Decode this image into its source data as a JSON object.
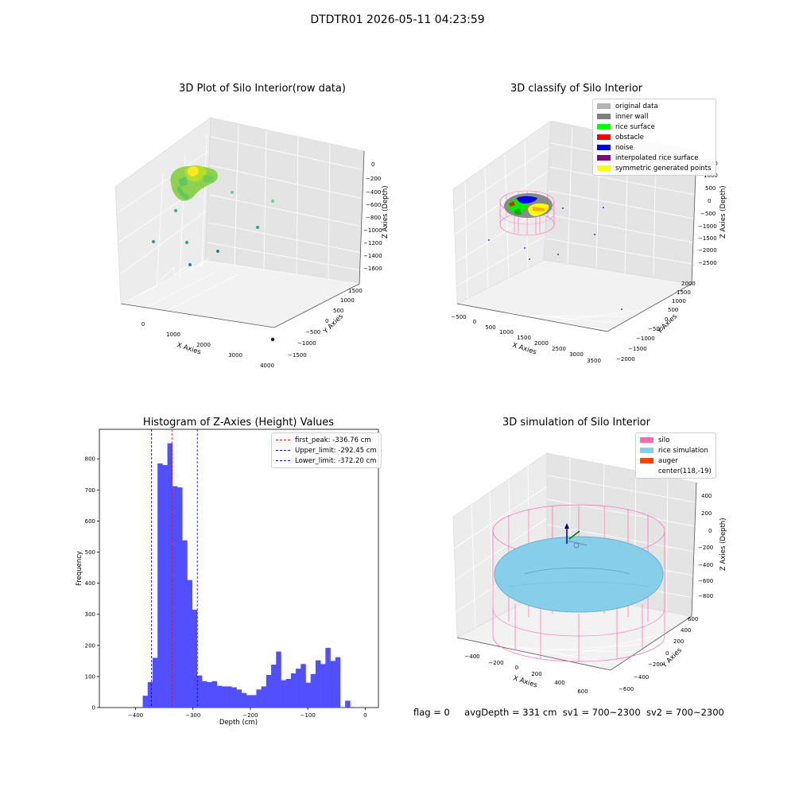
{
  "suptitle": "DTDTR01 2026-05-11 04:23:59",
  "footer": {
    "flag": "flag = 0",
    "avg_depth": "avgDepth = 331 cm",
    "sv1": "sv1 = 700~2300",
    "sv2": "sv2 = 700~2300"
  },
  "chart_data": [
    {
      "type": "scatter",
      "title": "3D Plot of Silo Interior(row data)",
      "xlabel": "X Axies",
      "ylabel": "Y Axies",
      "zlabel": "Z Axies (Depth)",
      "x_ticks": [
        "0",
        "1000",
        "2000",
        "3000",
        "4000"
      ],
      "y_ticks": [
        "−1500",
        "−1000",
        "−500",
        "0",
        "500",
        "1000",
        "1500"
      ],
      "z_ticks": [
        "0",
        "−200",
        "−400",
        "−600",
        "−800",
        "−1000",
        "−1200",
        "−1400",
        "−1600"
      ],
      "grid": true,
      "colormap": "viridis"
    },
    {
      "type": "scatter",
      "title": "3D classify of Silo Interior",
      "xlabel": "X Axies",
      "ylabel": "Y Axies",
      "zlabel": "Z Axies (Depth)",
      "x_ticks": [
        "−500",
        "0",
        "500",
        "1000",
        "1500",
        "2000",
        "2500",
        "3000",
        "3500"
      ],
      "y_ticks": [
        "−2000",
        "−1500",
        "−1000",
        "−500",
        "0",
        "500",
        "1000",
        "1500",
        "2000"
      ],
      "z_ticks": [
        "1500",
        "1000",
        "500",
        "0",
        "−500",
        "−1000",
        "−1500",
        "−2000",
        "−2500"
      ],
      "grid": true,
      "legend": {
        "placement": "top-right",
        "entries": [
          {
            "label": "original data",
            "color": "#b3b3b3"
          },
          {
            "label": "inner wall",
            "color": "#808080"
          },
          {
            "label": "rice surface",
            "color": "#00ff00"
          },
          {
            "label": "obstacle",
            "color": "#ff0000"
          },
          {
            "label": "noise",
            "color": "#0000ff"
          },
          {
            "label": "interpolated rice surface",
            "color": "#800080"
          },
          {
            "label": "symmetric generated points",
            "color": "#ffff00"
          }
        ]
      }
    },
    {
      "type": "bar",
      "title": "Histogram of Z-Axies (Height) Values",
      "xlabel": "Depth (cm)",
      "ylabel": "Frequency",
      "xlim": [
        -463,
        23
      ],
      "ylim": [
        0,
        895
      ],
      "x_ticks": [
        -400,
        -300,
        -200,
        -100,
        0
      ],
      "x_tick_labels": [
        "−400",
        "−300",
        "−200",
        "−100",
        "0"
      ],
      "y_ticks": [
        0,
        100,
        200,
        300,
        400,
        500,
        600,
        700,
        800
      ],
      "bar_color": "#5050ff",
      "bin_start": -387.5,
      "bin_width": 8.6,
      "values": [
        38,
        82,
        160,
        785,
        780,
        850,
        712,
        708,
        538,
        410,
        315,
        103,
        85,
        82,
        85,
        70,
        68,
        68,
        65,
        58,
        47,
        40,
        40,
        58,
        68,
        105,
        138,
        180,
        88,
        92,
        110,
        125,
        140,
        80,
        108,
        152,
        140,
        192,
        150,
        162,
        0,
        22
      ],
      "vlines": [
        {
          "label": "first_peak: -336.76 cm",
          "x": -336.76,
          "color": "#ff0000"
        },
        {
          "label": "Upper_limit: -292.45 cm",
          "x": -292.45,
          "color": "#0000cc"
        },
        {
          "label": "Lower_limit: -372.20 cm",
          "x": -372.2,
          "color": "#0000cc"
        }
      ],
      "legend_placement": "top-right"
    },
    {
      "type": "scatter",
      "title": "3D simulation of Silo Interior",
      "xlabel": "X Axies",
      "ylabel": "Y Axies",
      "zlabel": "Z Axies (Depth)",
      "x_ticks": [
        "−400",
        "−200",
        "0",
        "200",
        "400",
        "600"
      ],
      "y_ticks": [
        "−600",
        "−400",
        "−200",
        "0",
        "200",
        "400",
        "600"
      ],
      "z_ticks": [
        "400",
        "200",
        "0",
        "−200",
        "−400",
        "−600",
        "−800"
      ],
      "grid": true,
      "legend": {
        "placement": "top-right",
        "entries": [
          {
            "label": "silo",
            "color": "#ff69b4"
          },
          {
            "label": "rice simulation",
            "color": "#87ceeb"
          },
          {
            "label": "auger",
            "color": "#ff4500"
          },
          {
            "label": "center(118,-19)",
            "color": ""
          }
        ]
      }
    }
  ]
}
